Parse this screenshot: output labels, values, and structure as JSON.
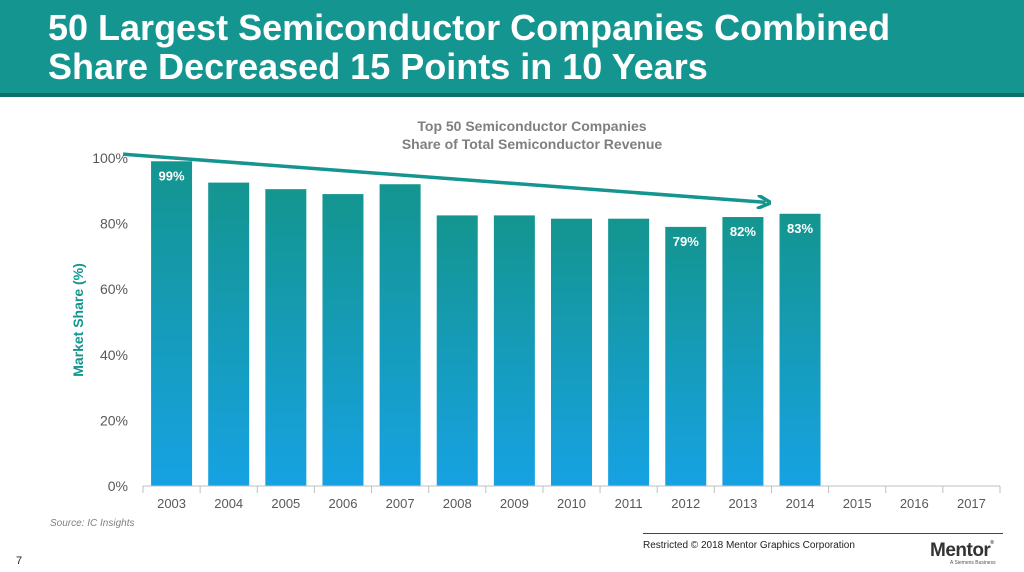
{
  "slide": {
    "title_line1": "50 Largest Semiconductor Companies Combined",
    "title_line2": "Share Decreased 15 Points in 10 Years",
    "source": "Source:  IC Insights",
    "copyright": "Restricted © 2018 Mentor Graphics Corporation",
    "page_number": "7",
    "logo_text": "Mentor",
    "logo_reg": "®",
    "logo_subtext": "A Siemens Business"
  },
  "chart_data": {
    "type": "bar",
    "title": "Top 50 Semiconductor Companies",
    "subtitle": "Share of Total Semiconductor Revenue",
    "ylabel": "Market Share (%)",
    "xlabel": "",
    "categories": [
      "2003",
      "2004",
      "2005",
      "2006",
      "2007",
      "2008",
      "2009",
      "2010",
      "2011",
      "2012",
      "2013",
      "2014",
      "2015",
      "2016",
      "2017"
    ],
    "values": [
      99,
      92.5,
      90.5,
      89,
      92,
      82.5,
      82.5,
      81.5,
      81.5,
      79,
      82,
      83,
      null,
      null,
      null
    ],
    "data_labels": [
      "99%",
      "",
      "",
      "",
      "",
      "",
      "",
      "",
      "",
      "79%",
      "82%",
      "83%",
      "",
      "",
      ""
    ],
    "ylim": [
      0,
      100
    ],
    "yticks": [
      "0%",
      "20%",
      "40%",
      "60%",
      "80%",
      "100%"
    ],
    "ytick_values": [
      0,
      20,
      40,
      60,
      80,
      100
    ],
    "trend_arrow": {
      "from_category": "2003",
      "from_value": 103,
      "to_category": "2014",
      "to_value": 88
    },
    "colors": {
      "bar_top": "#14958f",
      "bar_bottom": "#16a2e3",
      "title": "#7f7f7f",
      "ylabel": "#14958f",
      "arrow": "#14958f",
      "axis": "#bfbfbf",
      "tick_text": "#595959"
    },
    "grid": false,
    "legend": "none"
  }
}
